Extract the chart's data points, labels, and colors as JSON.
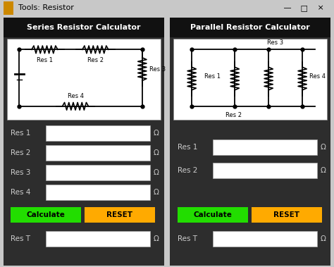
{
  "title_bar": "Tools: Resistor",
  "title_bar_bg": "#c8c8c8",
  "main_bg": "#3a3a3a",
  "panel_bg": "#2d2d2d",
  "left_title": "Series Resistor Calculator",
  "right_title": "Parallel Resistor Calculator",
  "title_color": "#ffffff",
  "circuit_bg": "#ffffff",
  "input_bg": "#ffffff",
  "input_border": "#aaaaaa",
  "label_color": "#cccccc",
  "omega_color": "#cccccc",
  "calc_color": "#22dd00",
  "reset_color": "#ffaa00",
  "calc_text": "Calculate",
  "reset_text": "RESET",
  "fig_width": 4.74,
  "fig_height": 3.79,
  "dpi": 100
}
